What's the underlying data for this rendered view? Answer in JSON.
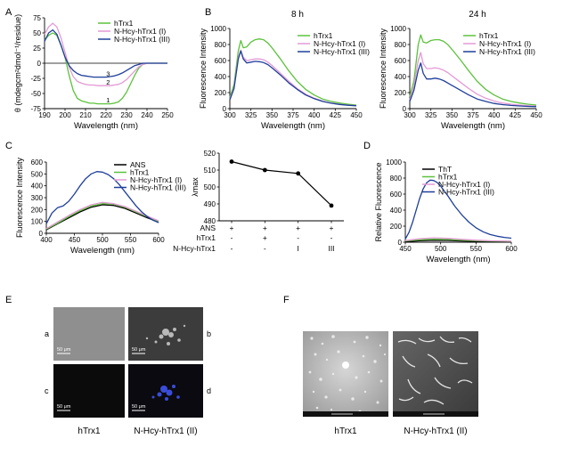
{
  "panel_letters": {
    "A": "A",
    "B": "B",
    "C": "C",
    "D": "D",
    "E": "E",
    "F": "F"
  },
  "colors": {
    "green": "#5cc23c",
    "pink": "#e39ad6",
    "blue": "#1f3f9a",
    "black": "#000000"
  },
  "chart_data": [
    {
      "id": "A",
      "type": "line",
      "xlabel": "Wavelength (nm)",
      "ylabel": "θ (mdegcm²dmol⁻¹/residue)",
      "xlim": [
        190,
        250
      ],
      "ylim": [
        -75,
        75
      ],
      "xticks": [
        "190",
        "200",
        "210",
        "220",
        "230",
        "240",
        "250"
      ],
      "yticks": [
        "-75",
        "-50",
        "-25",
        "0",
        "25",
        "50",
        "75"
      ],
      "zero_line": true,
      "legend": [
        "hTrx1",
        "N-Hcy-hTrx1 (I)",
        "N-Hcy-hTrx1 (III)"
      ],
      "curve_labels": [
        "3",
        "2",
        "1"
      ],
      "series": [
        {
          "name": "hTrx1",
          "color": "#5cc23c",
          "x": [
            190,
            192,
            194,
            196,
            198,
            200,
            202,
            204,
            206,
            208,
            210,
            212,
            214,
            216,
            218,
            220,
            222,
            224,
            226,
            228,
            230,
            232,
            234,
            236,
            238,
            240,
            242,
            244,
            246,
            248,
            250
          ],
          "y": [
            38,
            46,
            50,
            46,
            30,
            10,
            -20,
            -45,
            -58,
            -62,
            -64,
            -66,
            -66,
            -67,
            -67,
            -67,
            -67,
            -66,
            -64,
            -58,
            -48,
            -34,
            -20,
            -8,
            -2,
            0,
            0,
            0,
            0,
            0,
            0
          ]
        },
        {
          "name": "N-Hcy-hTrx1 (I)",
          "color": "#e39ad6",
          "x": [
            190,
            192,
            194,
            196,
            198,
            200,
            202,
            204,
            206,
            208,
            210,
            212,
            214,
            216,
            218,
            220,
            222,
            224,
            226,
            228,
            230,
            232,
            234,
            236,
            238,
            240,
            242,
            244,
            246,
            248,
            250
          ],
          "y": [
            48,
            60,
            66,
            60,
            42,
            18,
            -6,
            -22,
            -30,
            -33,
            -35,
            -36,
            -36,
            -37,
            -37,
            -37,
            -37,
            -36,
            -35,
            -32,
            -27,
            -20,
            -13,
            -6,
            -2,
            0,
            0,
            0,
            0,
            0,
            0
          ]
        },
        {
          "name": "N-Hcy-hTrx1 (III)",
          "color": "#1f3f9a",
          "x": [
            190,
            192,
            194,
            196,
            198,
            200,
            202,
            204,
            206,
            208,
            210,
            212,
            214,
            216,
            218,
            220,
            222,
            224,
            226,
            228,
            230,
            232,
            234,
            236,
            238,
            240,
            242,
            244,
            246,
            248,
            250
          ],
          "y": [
            36,
            50,
            55,
            48,
            30,
            10,
            -4,
            -12,
            -17,
            -20,
            -21,
            -22,
            -23,
            -23,
            -23,
            -23,
            -22,
            -21,
            -19,
            -16,
            -12,
            -8,
            -4,
            -2,
            0,
            0,
            0,
            0,
            0,
            0,
            0
          ]
        }
      ]
    },
    {
      "id": "B1",
      "type": "line",
      "title": "8 h",
      "xlabel": "Wavelength (nm)",
      "ylabel": "Fluorescence Intensity",
      "xlim": [
        300,
        450
      ],
      "ylim": [
        0,
        1000
      ],
      "xticks": [
        "300",
        "325",
        "350",
        "375",
        "400",
        "425",
        "450"
      ],
      "yticks": [
        "0",
        "200",
        "400",
        "600",
        "800",
        "1000"
      ],
      "legend": [
        "hTrx1",
        "N-Hcy-hTrx1 (I)",
        "N-Hcy-hTrx1 (III)"
      ],
      "series": [
        {
          "name": "hTrx1",
          "color": "#5cc23c",
          "x": [
            300,
            305,
            310,
            313,
            316,
            320,
            325,
            330,
            335,
            340,
            345,
            350,
            360,
            370,
            380,
            390,
            400,
            410,
            420,
            430,
            440,
            450
          ],
          "y": [
            140,
            300,
            720,
            850,
            760,
            770,
            830,
            860,
            870,
            860,
            820,
            760,
            620,
            470,
            340,
            240,
            170,
            120,
            90,
            70,
            55,
            45
          ]
        },
        {
          "name": "N-Hcy-hTrx1 (I)",
          "color": "#e39ad6",
          "x": [
            300,
            305,
            310,
            313,
            316,
            320,
            325,
            330,
            335,
            340,
            345,
            350,
            360,
            370,
            380,
            390,
            400,
            410,
            420,
            430,
            440,
            450
          ],
          "y": [
            120,
            260,
            640,
            730,
            640,
            600,
            610,
            620,
            620,
            610,
            580,
            540,
            440,
            340,
            250,
            180,
            130,
            95,
            70,
            55,
            45,
            38
          ]
        },
        {
          "name": "N-Hcy-hTrx1 (III)",
          "color": "#1f3f9a",
          "x": [
            300,
            305,
            310,
            313,
            316,
            320,
            325,
            330,
            335,
            340,
            345,
            350,
            360,
            370,
            380,
            390,
            400,
            410,
            420,
            430,
            440,
            450
          ],
          "y": [
            110,
            250,
            620,
            720,
            620,
            570,
            580,
            590,
            585,
            575,
            550,
            510,
            420,
            320,
            240,
            170,
            125,
            90,
            68,
            52,
            42,
            35
          ]
        }
      ]
    },
    {
      "id": "B2",
      "type": "line",
      "title": "24 h",
      "xlabel": "Wavelength (nm)",
      "ylabel": "Fluorescence Intensity",
      "xlim": [
        300,
        450
      ],
      "ylim": [
        0,
        1000
      ],
      "xticks": [
        "300",
        "325",
        "350",
        "375",
        "400",
        "425",
        "450"
      ],
      "yticks": [
        "0",
        "200",
        "400",
        "600",
        "800",
        "1000"
      ],
      "legend": [
        "hTrx1",
        "N-Hcy-hTrx1 (I)",
        "N-Hcy-hTrx1 (III)"
      ],
      "series": [
        {
          "name": "hTrx1",
          "color": "#5cc23c",
          "x": [
            300,
            305,
            310,
            313,
            316,
            320,
            325,
            330,
            335,
            340,
            345,
            350,
            360,
            370,
            380,
            390,
            400,
            410,
            420,
            430,
            440,
            450
          ],
          "y": [
            150,
            350,
            800,
            920,
            830,
            820,
            850,
            860,
            860,
            840,
            800,
            740,
            610,
            470,
            340,
            240,
            170,
            120,
            90,
            70,
            55,
            45
          ]
        },
        {
          "name": "N-Hcy-hTrx1 (I)",
          "color": "#e39ad6",
          "x": [
            300,
            305,
            310,
            313,
            316,
            320,
            325,
            330,
            335,
            340,
            345,
            350,
            360,
            370,
            380,
            390,
            400,
            410,
            420,
            430,
            440,
            450
          ],
          "y": [
            110,
            280,
            600,
            700,
            560,
            500,
            500,
            510,
            500,
            480,
            450,
            410,
            330,
            250,
            180,
            130,
            95,
            70,
            55,
            45,
            38,
            32
          ]
        },
        {
          "name": "N-Hcy-hTrx1 (III)",
          "color": "#1f3f9a",
          "x": [
            300,
            305,
            310,
            313,
            316,
            320,
            325,
            330,
            335,
            340,
            345,
            350,
            360,
            370,
            380,
            390,
            400,
            410,
            420,
            430,
            440,
            450
          ],
          "y": [
            90,
            230,
            480,
            570,
            440,
            370,
            370,
            380,
            370,
            350,
            320,
            290,
            230,
            170,
            120,
            90,
            65,
            50,
            40,
            33,
            28,
            25
          ]
        }
      ]
    },
    {
      "id": "C1",
      "type": "line",
      "xlabel": "Wavelength (nm)",
      "ylabel": "Fluorescence Intensity",
      "xlim": [
        400,
        600
      ],
      "ylim": [
        0,
        600
      ],
      "xticks": [
        "400",
        "450",
        "500",
        "550",
        "600"
      ],
      "yticks": [
        "0",
        "100",
        "200",
        "300",
        "400",
        "500",
        "600"
      ],
      "legend": [
        "ANS",
        "hTrx1",
        "N-Hcy-hTrx1 (I)",
        "N-Hcy-hTrx1 (III)"
      ],
      "series": [
        {
          "name": "ANS",
          "color": "#000000",
          "x": [
            400,
            420,
            440,
            460,
            480,
            500,
            520,
            540,
            560,
            580,
            600
          ],
          "y": [
            30,
            80,
            130,
            180,
            220,
            240,
            235,
            210,
            170,
            130,
            95
          ]
        },
        {
          "name": "hTrx1",
          "color": "#5cc23c",
          "x": [
            400,
            420,
            440,
            460,
            480,
            500,
            520,
            540,
            560,
            580,
            600
          ],
          "y": [
            35,
            85,
            140,
            190,
            230,
            250,
            245,
            220,
            180,
            140,
            100
          ]
        },
        {
          "name": "N-Hcy-hTrx1 (I)",
          "color": "#e39ad6",
          "x": [
            400,
            420,
            440,
            460,
            480,
            500,
            520,
            540,
            560,
            580,
            600
          ],
          "y": [
            40,
            95,
            150,
            200,
            240,
            260,
            250,
            225,
            185,
            145,
            105
          ]
        },
        {
          "name": "N-Hcy-hTrx1 (III)",
          "color": "#1f3f9a",
          "x": [
            400,
            410,
            420,
            430,
            440,
            450,
            460,
            470,
            480,
            490,
            500,
            510,
            520,
            530,
            540,
            550,
            560,
            570,
            580,
            590,
            600
          ],
          "y": [
            80,
            170,
            215,
            230,
            270,
            330,
            400,
            460,
            500,
            520,
            515,
            495,
            460,
            410,
            350,
            290,
            230,
            180,
            140,
            110,
            90
          ]
        }
      ]
    },
    {
      "id": "C2",
      "type": "line",
      "ylabel": "λmax",
      "ylim": [
        480,
        520
      ],
      "yticks": [
        "480",
        "490",
        "500",
        "510",
        "520"
      ],
      "x": [
        1,
        2,
        3,
        4
      ],
      "values": [
        515,
        510,
        508,
        489
      ],
      "row_labels": [
        "ANS",
        "hTrx1",
        "N-Hcy-hTrx1"
      ],
      "rows": [
        [
          "+",
          "+",
          "+",
          "+"
        ],
        [
          "-",
          "+",
          "-",
          "-"
        ],
        [
          "-",
          "-",
          "I",
          "III"
        ]
      ]
    },
    {
      "id": "D",
      "type": "line",
      "xlabel": "Wavelength (nm)",
      "ylabel": "Relative Fluorescence",
      "xlim": [
        450,
        600
      ],
      "ylim": [
        0,
        1000
      ],
      "xticks": [
        "450",
        "500",
        "550",
        "600"
      ],
      "yticks": [
        "0",
        "200",
        "400",
        "600",
        "800",
        "1000"
      ],
      "legend": [
        "ThT",
        "hTrx1",
        "N-Hcy-hTrx1 (I)",
        "N-Hcy-hTrx1 (III)"
      ],
      "series": [
        {
          "name": "ThT",
          "color": "#000000",
          "x": [
            450,
            470,
            490,
            510,
            530,
            550,
            570,
            600
          ],
          "y": [
            8,
            18,
            25,
            22,
            16,
            11,
            8,
            5
          ]
        },
        {
          "name": "hTrx1",
          "color": "#5cc23c",
          "x": [
            450,
            470,
            490,
            510,
            530,
            550,
            570,
            600
          ],
          "y": [
            15,
            30,
            38,
            34,
            26,
            19,
            14,
            10
          ]
        },
        {
          "name": "N-Hcy-hTrx1 (I)",
          "color": "#e39ad6",
          "x": [
            450,
            470,
            490,
            510,
            530,
            550,
            570,
            600
          ],
          "y": [
            20,
            42,
            55,
            48,
            36,
            26,
            18,
            12
          ]
        },
        {
          "name": "N-Hcy-hTrx1 (III)",
          "color": "#1f3f9a",
          "x": [
            450,
            455,
            460,
            465,
            470,
            475,
            480,
            485,
            490,
            495,
            500,
            505,
            510,
            520,
            530,
            540,
            550,
            560,
            570,
            580,
            590,
            600
          ],
          "y": [
            40,
            120,
            240,
            390,
            540,
            660,
            740,
            775,
            770,
            745,
            700,
            640,
            580,
            450,
            340,
            250,
            180,
            130,
            95,
            75,
            60,
            50
          ]
        }
      ]
    }
  ],
  "panel_E": {
    "sub_labels": [
      "a",
      "b",
      "c",
      "d"
    ],
    "scale_text": "50 μm",
    "captions": [
      "hTrx1",
      "N-Hcy-hTrx1 (II)"
    ]
  },
  "panel_F": {
    "captions": [
      "hTrx1",
      "N-Hcy-hTrx1 (II)"
    ]
  }
}
